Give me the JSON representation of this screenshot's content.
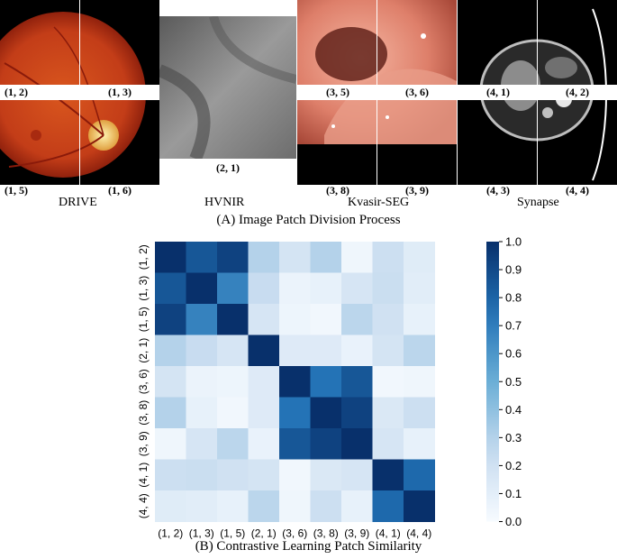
{
  "top": {
    "caption": "(A) Image Patch Division Process",
    "datasets": [
      {
        "name": "DRIVE",
        "labels": [
          "(1, 2)",
          "(1, 3)",
          "(1, 5)",
          "(1, 6)"
        ]
      },
      {
        "name": "HVNIR",
        "labels": [
          "(2, 1)"
        ]
      },
      {
        "name": "Kvasir-SEG",
        "labels": [
          "(3, 5)",
          "(3, 6)",
          "(3, 8)",
          "(3, 9)"
        ]
      },
      {
        "name": "Synapse",
        "labels": [
          "(4, 1)",
          "(4, 2)",
          "(4, 3)",
          "(4, 4)"
        ]
      }
    ],
    "colors": {
      "fundus": "#c8431f",
      "fundus_dark": "#7a1508",
      "nir": "#8a8a8a",
      "endo": "#e08a78",
      "ct_bg": "#000000"
    }
  },
  "bottom": {
    "caption": "(B) Contrastive Learning Patch Similarity"
  },
  "chart_data": {
    "type": "heatmap",
    "title": "",
    "labels": [
      "(1, 2)",
      "(1, 3)",
      "(1, 5)",
      "(2, 1)",
      "(3, 6)",
      "(3, 8)",
      "(3, 9)",
      "(4, 1)",
      "(4, 4)"
    ],
    "matrix": [
      [
        1.0,
        0.85,
        0.93,
        0.3,
        0.18,
        0.3,
        0.04,
        0.22,
        0.12
      ],
      [
        0.85,
        1.0,
        0.68,
        0.24,
        0.06,
        0.08,
        0.17,
        0.23,
        0.11
      ],
      [
        0.93,
        0.68,
        1.0,
        0.17,
        0.05,
        0.03,
        0.28,
        0.2,
        0.08
      ],
      [
        0.3,
        0.24,
        0.17,
        1.0,
        0.13,
        0.13,
        0.07,
        0.18,
        0.28
      ],
      [
        0.18,
        0.06,
        0.05,
        0.13,
        1.0,
        0.74,
        0.85,
        0.03,
        0.04
      ],
      [
        0.3,
        0.08,
        0.03,
        0.13,
        0.74,
        1.0,
        0.93,
        0.15,
        0.22
      ],
      [
        0.04,
        0.17,
        0.28,
        0.07,
        0.85,
        0.93,
        1.0,
        0.17,
        0.08
      ],
      [
        0.22,
        0.23,
        0.2,
        0.18,
        0.03,
        0.15,
        0.17,
        1.0,
        0.78
      ],
      [
        0.12,
        0.11,
        0.08,
        0.28,
        0.04,
        0.22,
        0.08,
        0.78,
        1.0
      ]
    ],
    "colorbar": {
      "min": 0.0,
      "max": 1.0,
      "ticks": [
        "0.0",
        "0.1",
        "0.2",
        "0.3",
        "0.4",
        "0.5",
        "0.6",
        "0.7",
        "0.8",
        "0.9",
        "1.0"
      ]
    },
    "colormap": "Blues"
  }
}
